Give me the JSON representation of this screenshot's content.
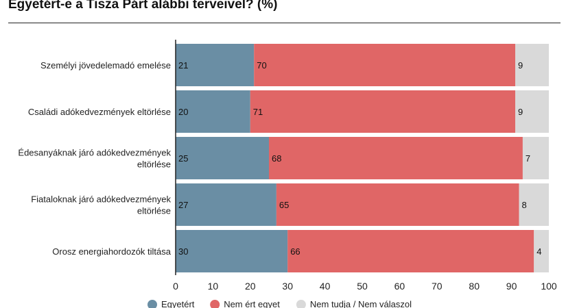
{
  "chart_data": {
    "type": "bar",
    "stacked": true,
    "orientation": "horizontal",
    "title": "Egyetért-e a Tisza Párt alábbi terveivel? (%)",
    "categories": [
      [
        "Személyi jövedelemadó emelése"
      ],
      [
        "Családi adókedvezmények eltörlése"
      ],
      [
        "Édesanyáknak járó adókedvezmények",
        "eltörlése"
      ],
      [
        "Fiataloknak járó adókedvezmények",
        "eltörlése"
      ],
      [
        "Orosz energiahordozók tiltása"
      ]
    ],
    "series": [
      {
        "name": "Egyetért",
        "color": "#6a8ea4",
        "values": [
          21,
          20,
          25,
          27,
          30
        ]
      },
      {
        "name": "Nem ért egyet",
        "color": "#e06666",
        "values": [
          70,
          71,
          68,
          65,
          66
        ]
      },
      {
        "name": "Nem tudja / Nem válaszol",
        "color": "#d9d9d9",
        "values": [
          9,
          9,
          7,
          8,
          4
        ]
      }
    ],
    "xlim": [
      0,
      100
    ],
    "xticks": [
      0,
      10,
      20,
      30,
      40,
      50,
      60,
      70,
      80,
      90,
      100
    ],
    "legend": "bottom",
    "grid": false
  }
}
